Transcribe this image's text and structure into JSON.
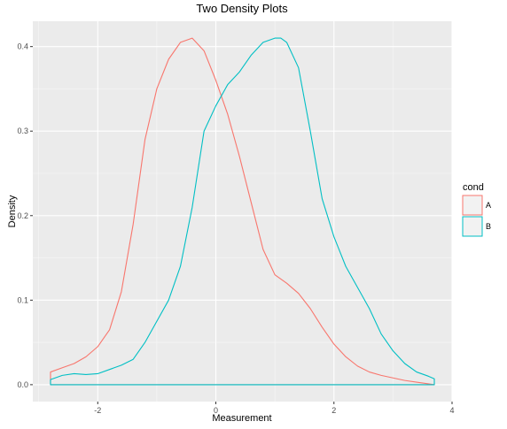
{
  "chart_data": {
    "type": "area",
    "title": "Two Density Plots",
    "xlabel": "Measurement",
    "ylabel": "Density",
    "xlim": [
      -3.1,
      4.0
    ],
    "ylim": [
      -0.02,
      0.43
    ],
    "x_ticks": [
      -2,
      0,
      2,
      4
    ],
    "x_tick_labels": [
      "-2",
      "0",
      "2",
      "4"
    ],
    "y_ticks": [
      0.0,
      0.1,
      0.2,
      0.3,
      0.4
    ],
    "y_tick_labels": [
      "0.0",
      "0.1",
      "0.2",
      "0.3",
      "0.4"
    ],
    "grid": true,
    "legend": {
      "title": "cond",
      "placement": "right"
    },
    "series": [
      {
        "name": "A",
        "color": "#F8766D",
        "x": [
          -2.8,
          -2.6,
          -2.4,
          -2.2,
          -2.0,
          -1.8,
          -1.6,
          -1.4,
          -1.2,
          -1.0,
          -0.8,
          -0.6,
          -0.4,
          -0.2,
          0.0,
          0.2,
          0.4,
          0.6,
          0.8,
          1.0,
          1.2,
          1.4,
          1.6,
          1.8,
          2.0,
          2.2,
          2.4,
          2.6,
          2.8,
          3.0,
          3.2,
          3.4,
          3.6,
          3.7
        ],
        "y": [
          0.015,
          0.02,
          0.025,
          0.033,
          0.045,
          0.065,
          0.11,
          0.19,
          0.29,
          0.35,
          0.385,
          0.405,
          0.41,
          0.395,
          0.36,
          0.32,
          0.27,
          0.215,
          0.16,
          0.13,
          0.12,
          0.108,
          0.09,
          0.068,
          0.048,
          0.033,
          0.022,
          0.015,
          0.011,
          0.008,
          0.005,
          0.003,
          0.001,
          0.0
        ]
      },
      {
        "name": "B",
        "color": "#00BFC4",
        "x": [
          -2.8,
          -2.6,
          -2.4,
          -2.2,
          -2.0,
          -1.8,
          -1.6,
          -1.4,
          -1.2,
          -1.0,
          -0.8,
          -0.6,
          -0.4,
          -0.2,
          0.0,
          0.2,
          0.4,
          0.6,
          0.8,
          1.0,
          1.1,
          1.2,
          1.4,
          1.6,
          1.8,
          2.0,
          2.2,
          2.4,
          2.6,
          2.8,
          3.0,
          3.2,
          3.4,
          3.6,
          3.7
        ],
        "y": [
          0.006,
          0.011,
          0.013,
          0.012,
          0.013,
          0.018,
          0.023,
          0.03,
          0.05,
          0.075,
          0.1,
          0.14,
          0.21,
          0.3,
          0.33,
          0.355,
          0.37,
          0.39,
          0.405,
          0.41,
          0.41,
          0.405,
          0.375,
          0.3,
          0.22,
          0.175,
          0.14,
          0.115,
          0.09,
          0.06,
          0.04,
          0.025,
          0.015,
          0.01,
          0.007
        ]
      }
    ]
  }
}
